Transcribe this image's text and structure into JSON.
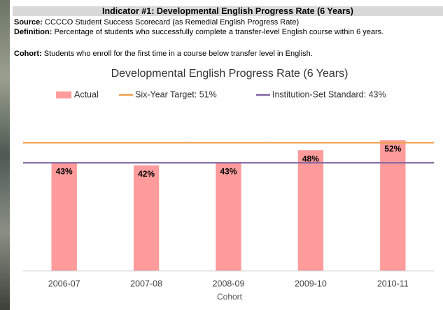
{
  "header": {
    "title": "Indicator #1: Developmental English Progress Rate (6 Years)",
    "source_label": "Source:",
    "source": "CCCCO Student Success Scorecard (as Remedial English Progress Rate)",
    "definition_label": "Definition:",
    "definition": "Percentage of students who successfully complete a transfer-level English course within 6 years.",
    "cohort_label": "Cohort:",
    "cohort": "Students who enroll for the first time in a course below transfer level in English."
  },
  "chart_data": {
    "type": "bar",
    "title": "Developmental English Progress Rate (6 Years)",
    "x_label": "Cohort",
    "categories": [
      "2006-07",
      "2007-08",
      "2008-09",
      "2009-10",
      "2010-11"
    ],
    "series": [
      {
        "name": "Actual",
        "color": "#ff9b9b",
        "values": [
          43,
          42,
          43,
          48,
          52
        ],
        "value_labels": [
          "43%",
          "42%",
          "43%",
          "48%",
          "52%"
        ]
      },
      {
        "name": "Six-Year Target: 51%",
        "type": "line",
        "color": "#f0a04b",
        "values": [
          51,
          51,
          51,
          51,
          51
        ]
      },
      {
        "name": "Institution-Set Standard: 43%",
        "type": "line",
        "color": "#8064a2",
        "values": [
          43,
          43,
          43,
          43,
          43
        ]
      }
    ],
    "ylim": [
      0,
      60
    ]
  }
}
